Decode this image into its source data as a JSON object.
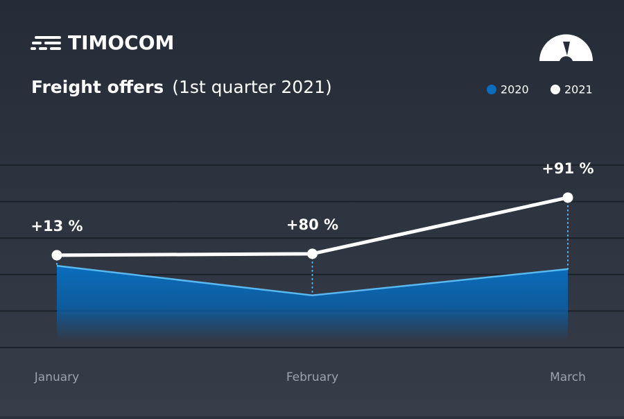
{
  "brand": "TIMOCOM",
  "chart_data": {
    "type": "line",
    "title": "Freight offers",
    "subtitle": "(1st quarter 2021)",
    "categories": [
      "January",
      "February",
      "March"
    ],
    "series": [
      {
        "name": "2020",
        "color": "#0a6ebd",
        "line_color": "#5ab8f0",
        "values": [
          2.24,
          1.43,
          2.15
        ]
      },
      {
        "name": "2021",
        "color": "#ffffff",
        "values": [
          2.53,
          2.57,
          4.11
        ]
      }
    ],
    "change_labels": [
      "+13 %",
      "+80 %",
      "+91 %"
    ],
    "ylim": [
      0,
      5
    ],
    "yticks": [
      0,
      1,
      2,
      3,
      4,
      5
    ],
    "grid": true
  }
}
